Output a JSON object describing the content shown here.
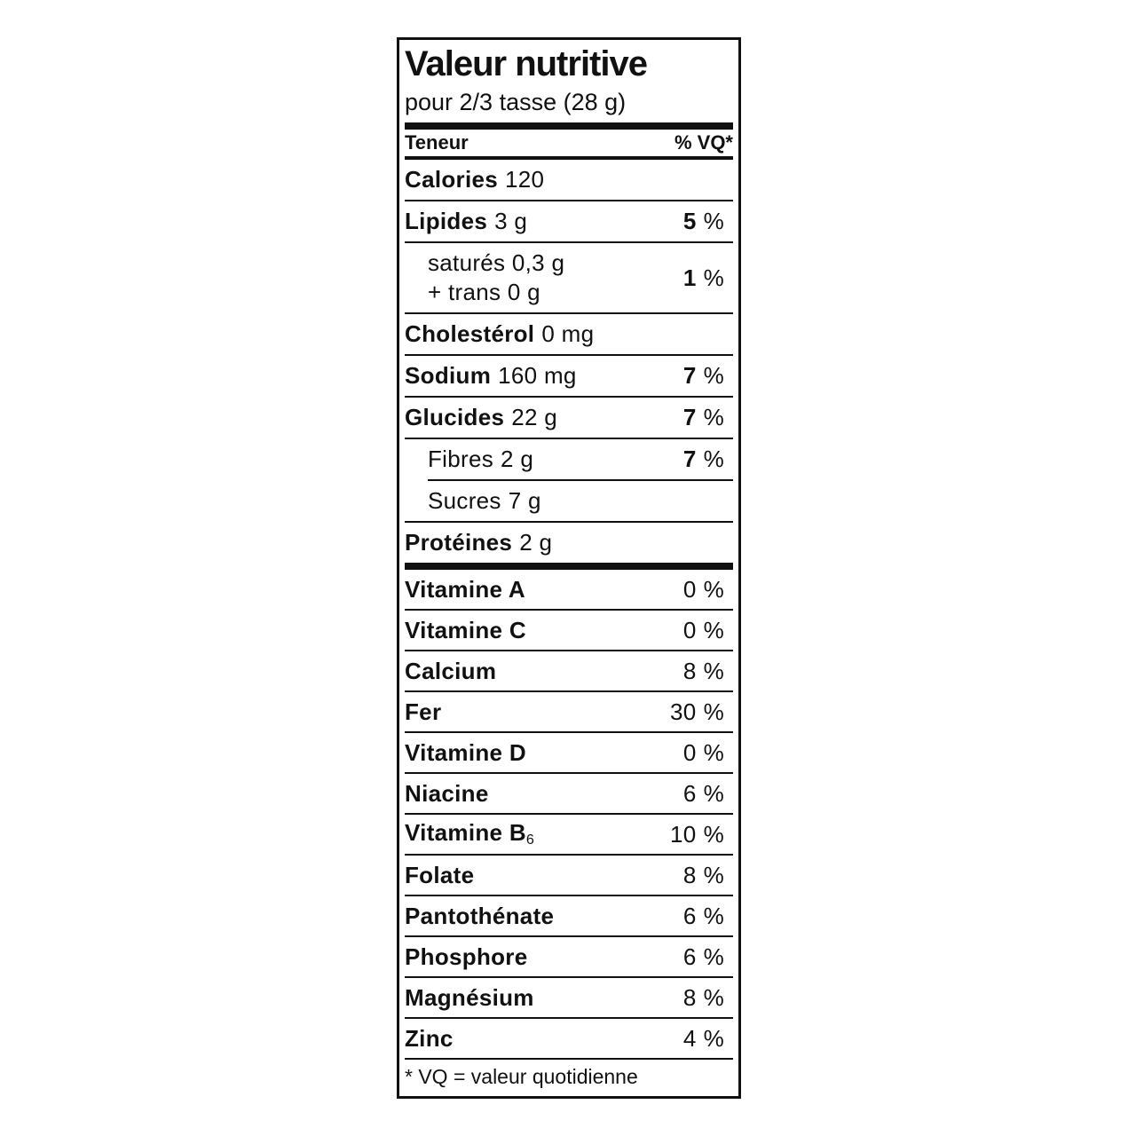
{
  "label": {
    "title": "Valeur nutritive",
    "serving": "pour 2/3 tasse (28 g)",
    "columns": {
      "amount": "Teneur",
      "daily_value": "% VQ*"
    },
    "percent_sign": "%",
    "main_rows": [
      {
        "name": "Calories",
        "amount": "120"
      },
      {
        "name": "Lipides",
        "amount": "3 g",
        "dv": "5"
      },
      {
        "line1": "saturés 0,3 g",
        "line2": "+ trans 0 g",
        "dv": "1"
      },
      {
        "name": "Cholestérol",
        "amount": "0 mg"
      },
      {
        "name": "Sodium",
        "amount": "160 mg",
        "dv": "7"
      },
      {
        "name": "Glucides",
        "amount": "22 g",
        "dv": "7"
      },
      {
        "name": "Fibres",
        "amount": "2 g",
        "dv": "7"
      },
      {
        "name": "Sucres",
        "amount": "7 g"
      },
      {
        "name": "Protéines",
        "amount": "2 g"
      }
    ],
    "micro_rows": [
      {
        "name": "Vitamine A",
        "dv": "0"
      },
      {
        "name": "Vitamine C",
        "dv": "0"
      },
      {
        "name": "Calcium",
        "dv": "8"
      },
      {
        "name": "Fer",
        "dv": "30"
      },
      {
        "name": "Vitamine D",
        "dv": "0"
      },
      {
        "name": "Niacine",
        "dv": "6"
      },
      {
        "name": "Vitamine B",
        "name_sub": "6",
        "dv": "10"
      },
      {
        "name": "Folate",
        "dv": "8"
      },
      {
        "name": "Pantothénate",
        "dv": "6"
      },
      {
        "name": "Phosphore",
        "dv": "6"
      },
      {
        "name": "Magnésium",
        "dv": "8"
      },
      {
        "name": "Zinc",
        "dv": "4"
      }
    ],
    "footnote": "* VQ = valeur quotidienne"
  }
}
